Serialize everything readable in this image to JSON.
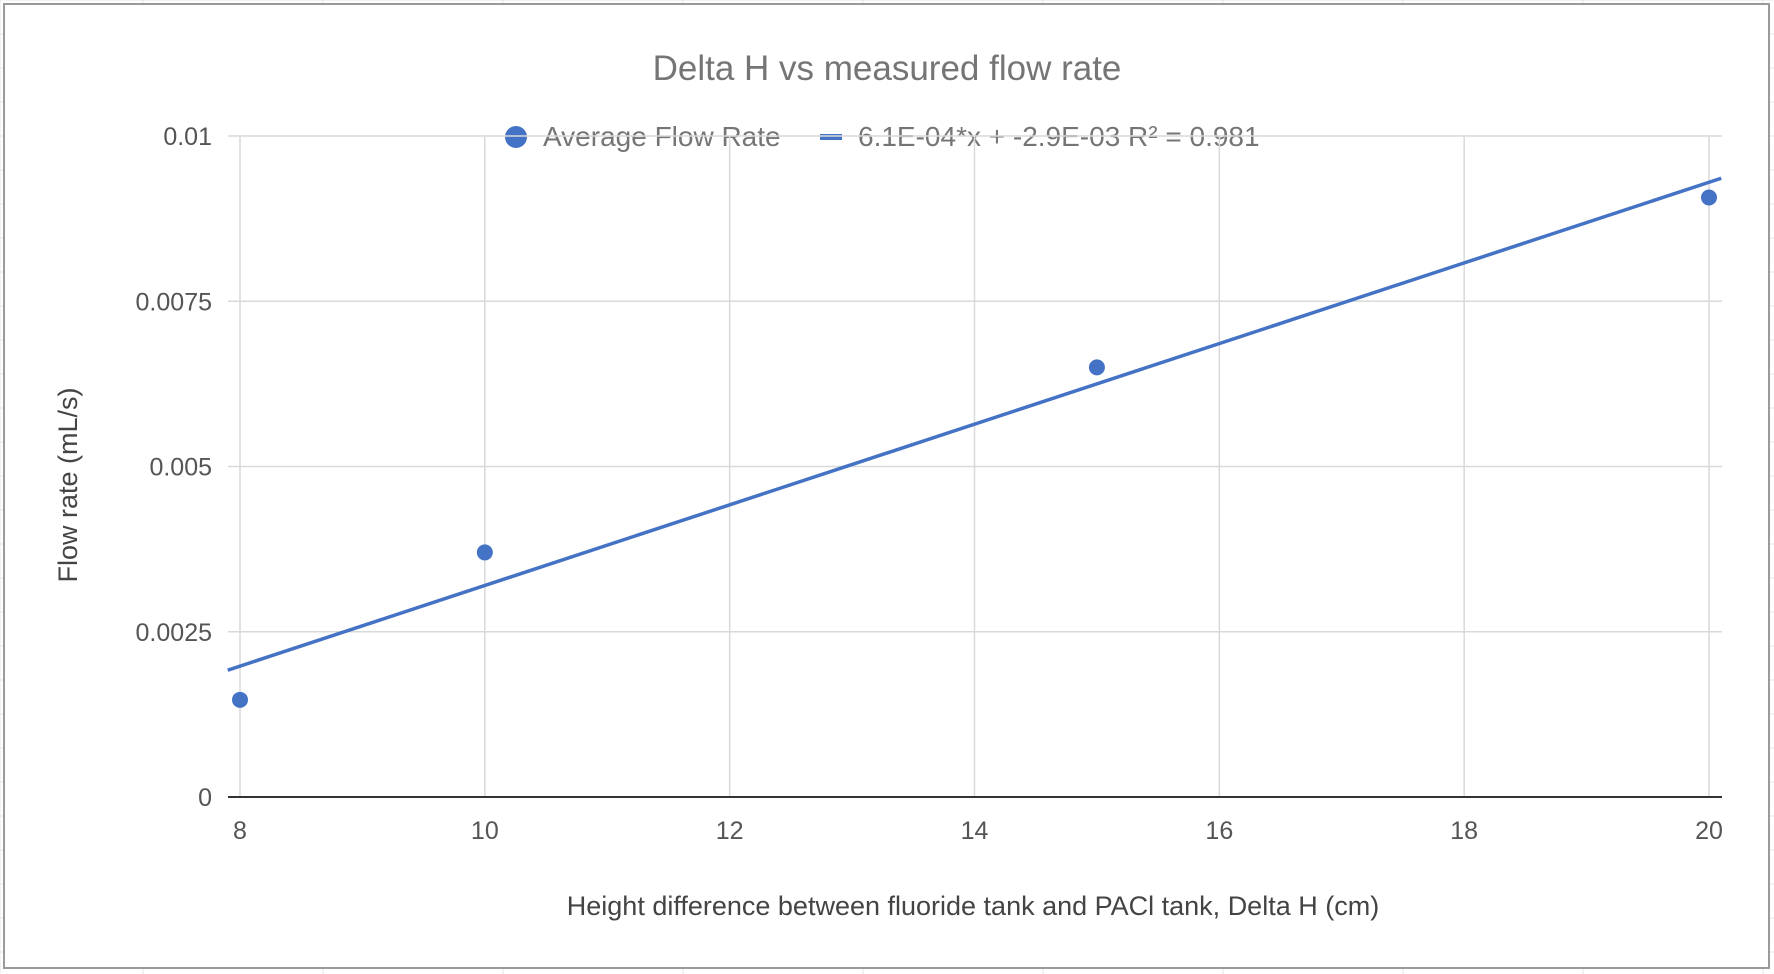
{
  "chart_data": {
    "type": "scatter",
    "title": "Delta H vs measured flow rate",
    "xlabel": "Height difference between fluoride tank and PACl tank, Delta H (cm)",
    "ylabel": "Flow rate (mL/s)",
    "xlim": [
      8,
      20
    ],
    "ylim": [
      0,
      0.01
    ],
    "x_ticks": [
      8,
      10,
      12,
      14,
      16,
      18,
      20
    ],
    "x_tick_labels": [
      "8",
      "10",
      "12",
      "14",
      "16",
      "18",
      "20"
    ],
    "y_ticks": [
      0,
      0.0025,
      0.005,
      0.0075,
      0.01
    ],
    "y_tick_labels": [
      "0",
      "0.0025",
      "0.005",
      "0.0075",
      "0.01"
    ],
    "grid": true,
    "legend_position": "top",
    "series": [
      {
        "name": "Average Flow Rate",
        "color": "#4472c4",
        "points": [
          {
            "x": 8,
            "y": 0.00147
          },
          {
            "x": 10,
            "y": 0.0037
          },
          {
            "x": 15,
            "y": 0.0065
          },
          {
            "x": 20,
            "y": 0.00907
          }
        ]
      }
    ],
    "trendline": {
      "label": "6.1E-04*x + -2.9E-03 R² = 0.981",
      "slope": 0.00061,
      "intercept": -0.0029,
      "x_range": [
        7.9,
        20.1
      ],
      "color": "#4472c4"
    }
  }
}
